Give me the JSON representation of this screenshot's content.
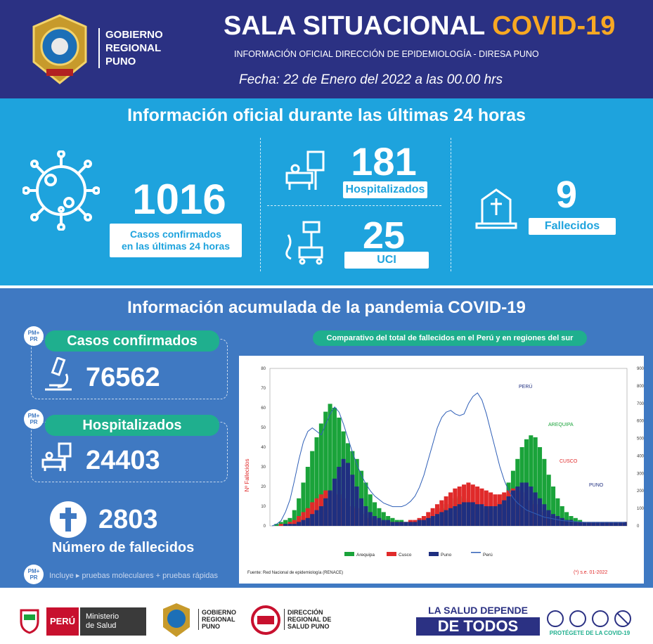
{
  "header": {
    "org_name_line1": "GOBIERNO",
    "org_name_line2": "REGIONAL",
    "org_name_line3": "PUNO",
    "title_main": "SALA SITUACIONAL",
    "title_accent": "COVID-19",
    "subtitle": "INFORMACIÓN OFICIAL DIRECCIÓN DE EPIDEMIOLOGÍA - DIRESA PUNO",
    "date": "Fecha: 22 de Enero del 2022 a las 00.00 hrs",
    "colors": {
      "header_bg": "#2b3183",
      "accent": "#f7a823"
    }
  },
  "last24": {
    "title": "Información oficial durante las últimas 24 horas",
    "confirmed": {
      "value": "1016",
      "label_line1": "Casos confirmados",
      "label_line2": "en las últimas 24 horas",
      "icon": "virus-icon"
    },
    "hospitalized": {
      "value": "181",
      "label": "Hospitalizados",
      "icon": "hospital-bed-icon"
    },
    "icu": {
      "value": "25",
      "label": "UCI",
      "icon": "icu-monitor-icon"
    },
    "deaths": {
      "value": "9",
      "label": "Fallecidos",
      "icon": "tombstone-icon"
    },
    "colors": {
      "bg": "#1ea3dd"
    }
  },
  "accumulated": {
    "title": "Información acumulada de la pandemia COVID-19",
    "badge": "PM+ PR",
    "confirmed": {
      "label": "Casos confirmados",
      "value": "76562",
      "icon": "microscope-icon"
    },
    "hospitalized": {
      "label": "Hospitalizados",
      "value": "24403",
      "icon": "hospital-bed-icon"
    },
    "deaths": {
      "value": "2803",
      "label": "Número de fallecidos",
      "icon": "cross-icon"
    },
    "note": "Incluye ▸ pruebas moleculares + pruebas rápidas",
    "colors": {
      "bg": "#3f79c2",
      "head": "#1faf8e"
    }
  },
  "chart_data": {
    "type": "bar",
    "title": "Comparativo del total de fallecidos en el Perú y en regiones del sur",
    "ylabel": "Nº Fallecidos",
    "ylim": [
      0,
      80
    ],
    "y2lim": [
      0,
      900
    ],
    "yticks": [
      "0",
      "10",
      "20",
      "30",
      "40",
      "50",
      "60",
      "70",
      "80"
    ],
    "y2ticks": [
      "0",
      "100",
      "200",
      "300",
      "400",
      "500",
      "600",
      "700",
      "800",
      "900"
    ],
    "series": [
      {
        "name": "Arequipa",
        "color": "#1aa33a",
        "values": [
          0,
          1,
          2,
          3,
          4,
          8,
          14,
          22,
          30,
          38,
          45,
          52,
          58,
          62,
          60,
          55,
          48,
          42,
          38,
          34,
          28,
          22,
          16,
          12,
          9,
          7,
          5,
          4,
          3,
          3,
          2,
          2,
          2,
          3,
          3,
          4,
          5,
          7,
          9,
          11,
          13,
          14,
          15,
          14,
          13,
          12,
          11,
          10,
          9,
          9,
          10,
          12,
          16,
          22,
          28,
          34,
          40,
          44,
          46,
          45,
          40,
          34,
          26,
          20,
          14,
          10,
          7,
          5,
          4,
          3,
          2,
          2,
          2,
          2,
          2,
          2,
          2,
          2,
          2,
          2
        ]
      },
      {
        "name": "Cusco",
        "color": "#e02a2a",
        "values": [
          0,
          0,
          1,
          1,
          2,
          3,
          5,
          7,
          9,
          12,
          14,
          16,
          18,
          18,
          17,
          16,
          14,
          12,
          10,
          9,
          7,
          6,
          4,
          3,
          3,
          2,
          2,
          2,
          2,
          2,
          2,
          3,
          3,
          4,
          5,
          7,
          9,
          11,
          13,
          15,
          17,
          19,
          20,
          21,
          22,
          21,
          20,
          19,
          18,
          17,
          16,
          16,
          17,
          18,
          19,
          18,
          17,
          15,
          13,
          11,
          9,
          7,
          5,
          4,
          3,
          3,
          2,
          2,
          2,
          2,
          2,
          2,
          2,
          2,
          2,
          2,
          2,
          2,
          2,
          2
        ]
      },
      {
        "name": "Puno",
        "color": "#1f2f80",
        "values": [
          0,
          0,
          0,
          1,
          1,
          1,
          2,
          3,
          4,
          6,
          8,
          10,
          14,
          18,
          24,
          30,
          34,
          32,
          26,
          20,
          14,
          10,
          7,
          5,
          4,
          3,
          3,
          2,
          2,
          2,
          2,
          2,
          2,
          3,
          3,
          4,
          5,
          6,
          7,
          8,
          9,
          10,
          11,
          12,
          12,
          12,
          11,
          11,
          10,
          10,
          10,
          11,
          13,
          15,
          18,
          20,
          22,
          22,
          20,
          17,
          14,
          11,
          8,
          6,
          5,
          4,
          3,
          3,
          2,
          2,
          2,
          2,
          2,
          2,
          2,
          2,
          2,
          2,
          2,
          2
        ]
      },
      {
        "name": "Perú",
        "color": "#2f5fb7",
        "axis": "right",
        "values": [
          0,
          10,
          30,
          80,
          150,
          260,
          380,
          480,
          540,
          560,
          540,
          520,
          580,
          640,
          680,
          650,
          580,
          500,
          420,
          350,
          290,
          240,
          200,
          170,
          150,
          130,
          120,
          110,
          110,
          110,
          120,
          140,
          170,
          220,
          290,
          380,
          470,
          560,
          620,
          650,
          660,
          640,
          630,
          640,
          700,
          740,
          760,
          720,
          640,
          540,
          440,
          340,
          260,
          200,
          160,
          130,
          110,
          90,
          80,
          70,
          60,
          50,
          45,
          40,
          35,
          30,
          28,
          26,
          24,
          22,
          20,
          20,
          20,
          20,
          20,
          20,
          20,
          20,
          20,
          20
        ]
      }
    ],
    "legend": [
      "Arequipa",
      "Cusco",
      "Puno",
      "Perú"
    ],
    "legend_position": "bottom",
    "annotations": [
      "PERÚ",
      "AREQUIPA",
      "CUSCO",
      "PUNO"
    ],
    "source": "Fuente: Red Nacional de epidemiología (RENACE)",
    "note": "(*) s.e. 01-2022"
  },
  "footer": {
    "peru_label": "PERÚ",
    "ministry_line1": "Ministerio",
    "ministry_line2": "de Salud",
    "gob_line1": "GOBIERNO",
    "gob_line2": "REGIONAL",
    "gob_line3": "PUNO",
    "diresa_line1": "DIRECCIÓN",
    "diresa_line2": "REGIONAL DE",
    "diresa_line3": "SALUD PUNO",
    "slogan_top": "LA SALUD DEPENDE",
    "slogan_main": "DE TODOS",
    "slogan_bottom": "PROTÉGETE DE LA COVID-19"
  }
}
